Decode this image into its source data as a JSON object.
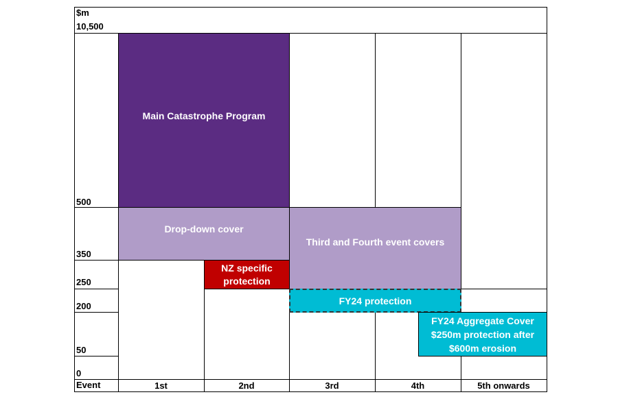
{
  "axis": {
    "unit": "$m",
    "levels": [
      "10,500",
      "500",
      "350",
      "250",
      "200",
      "50",
      "0"
    ],
    "event_label": "Event"
  },
  "columns": [
    "1st",
    "2nd",
    "3rd",
    "4th",
    "5th onwards"
  ],
  "blocks": [
    {
      "label_lines": [
        "Main Catastrophe Program"
      ]
    },
    {
      "label_lines": [
        "Drop-down cover"
      ]
    },
    {
      "label_lines": [
        "Third and Fourth event covers"
      ]
    },
    {
      "label_lines": [
        "NZ specific",
        "protection"
      ]
    },
    {
      "label_lines": [
        "FY24 protection"
      ]
    },
    {
      "label_lines": [
        "FY24 Aggregate Cover",
        "$250m protection after",
        "$600m erosion"
      ]
    }
  ]
}
